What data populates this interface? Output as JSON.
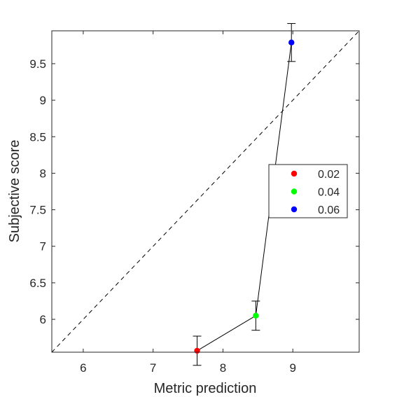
{
  "chart_data": {
    "type": "scatter",
    "title": "",
    "xlabel": "Metric prediction",
    "ylabel": "Subjective score",
    "xlim": [
      5.55,
      9.95
    ],
    "ylim": [
      5.55,
      9.95
    ],
    "xticks": [
      6,
      7,
      8,
      9
    ],
    "xtick_labels": [
      "6",
      "7",
      "8",
      "9"
    ],
    "yticks": [
      6,
      6.5,
      7,
      7.5,
      8,
      8.5,
      9,
      9.5
    ],
    "ytick_labels": [
      "6",
      "6.5",
      "7",
      "7.5",
      "8",
      "8.5",
      "9",
      "9.5"
    ],
    "grid": false,
    "reference_line": "y = x (dashed)",
    "connecting_line": true,
    "legend_position": "right",
    "series": [
      {
        "name": "0.02",
        "color": "#ff0000",
        "x": 7.63,
        "y": 5.57,
        "err": 0.2
      },
      {
        "name": "0.04",
        "color": "#00ff00",
        "x": 8.47,
        "y": 6.05,
        "err": 0.2
      },
      {
        "name": "0.06",
        "color": "#0000ff",
        "x": 8.98,
        "y": 9.79,
        "err": 0.26
      }
    ]
  }
}
